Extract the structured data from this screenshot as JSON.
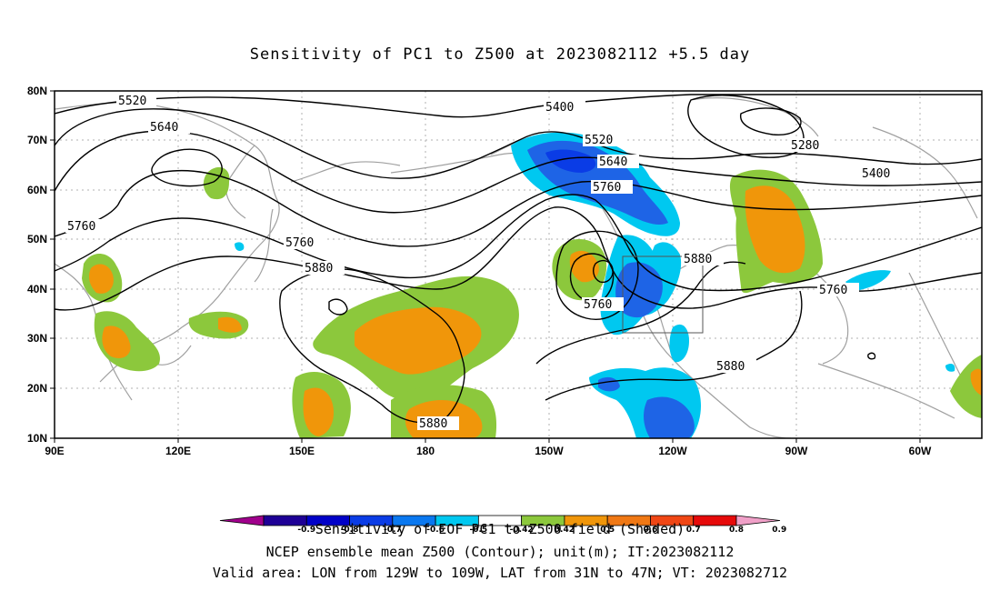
{
  "title": "Sensitivity of PC1 to Z500 at 2023082112 +5.5 day",
  "lat_labels": [
    "80N",
    "70N",
    "60N",
    "50N",
    "40N",
    "30N",
    "20N",
    "10N"
  ],
  "lon_labels": [
    "90E",
    "120E",
    "150E",
    "180",
    "150W",
    "120W",
    "90W",
    "60W"
  ],
  "contour_labels": [
    "5520",
    "5640",
    "5760",
    "5760",
    "5880",
    "5400",
    "5520",
    "5640",
    "5760",
    "5760",
    "5880",
    "5280",
    "5400",
    "5760",
    "5880",
    "5880"
  ],
  "colorbar": {
    "ticks": [
      "-0.9",
      "-0.8",
      "-0.7",
      "-0.6",
      "-0.5",
      "-0.42",
      "0.42",
      "0.5",
      "0.6",
      "0.7",
      "0.8",
      "0.9"
    ],
    "colors": [
      "#a0008c",
      "#1e0096",
      "#0000c8",
      "#0a3ce6",
      "#0a78f0",
      "#00c8f0",
      "#ffffff",
      "#8cc83c",
      "#f0960a",
      "#f07814",
      "#f04614",
      "#e60a0a",
      "#f0a0c8"
    ],
    "title": "Sensitivity of EOF PC1 to Z500 field (Shaded)"
  },
  "footer": {
    "line1": "NCEP ensemble mean Z500 (Contour); unit(m); IT:2023082112",
    "line2": "Valid area: LON from 129W to 109W, LAT from 31N to 47N; VT: 2023082712"
  },
  "valid_area": {
    "lon_min": -129,
    "lon_max": -109,
    "lat_min": 31,
    "lat_max": 47
  },
  "colors": {
    "negative": "#1e64e6",
    "positive": "#f0960a",
    "coast": "#a0a0a0",
    "contour": "#000000"
  }
}
